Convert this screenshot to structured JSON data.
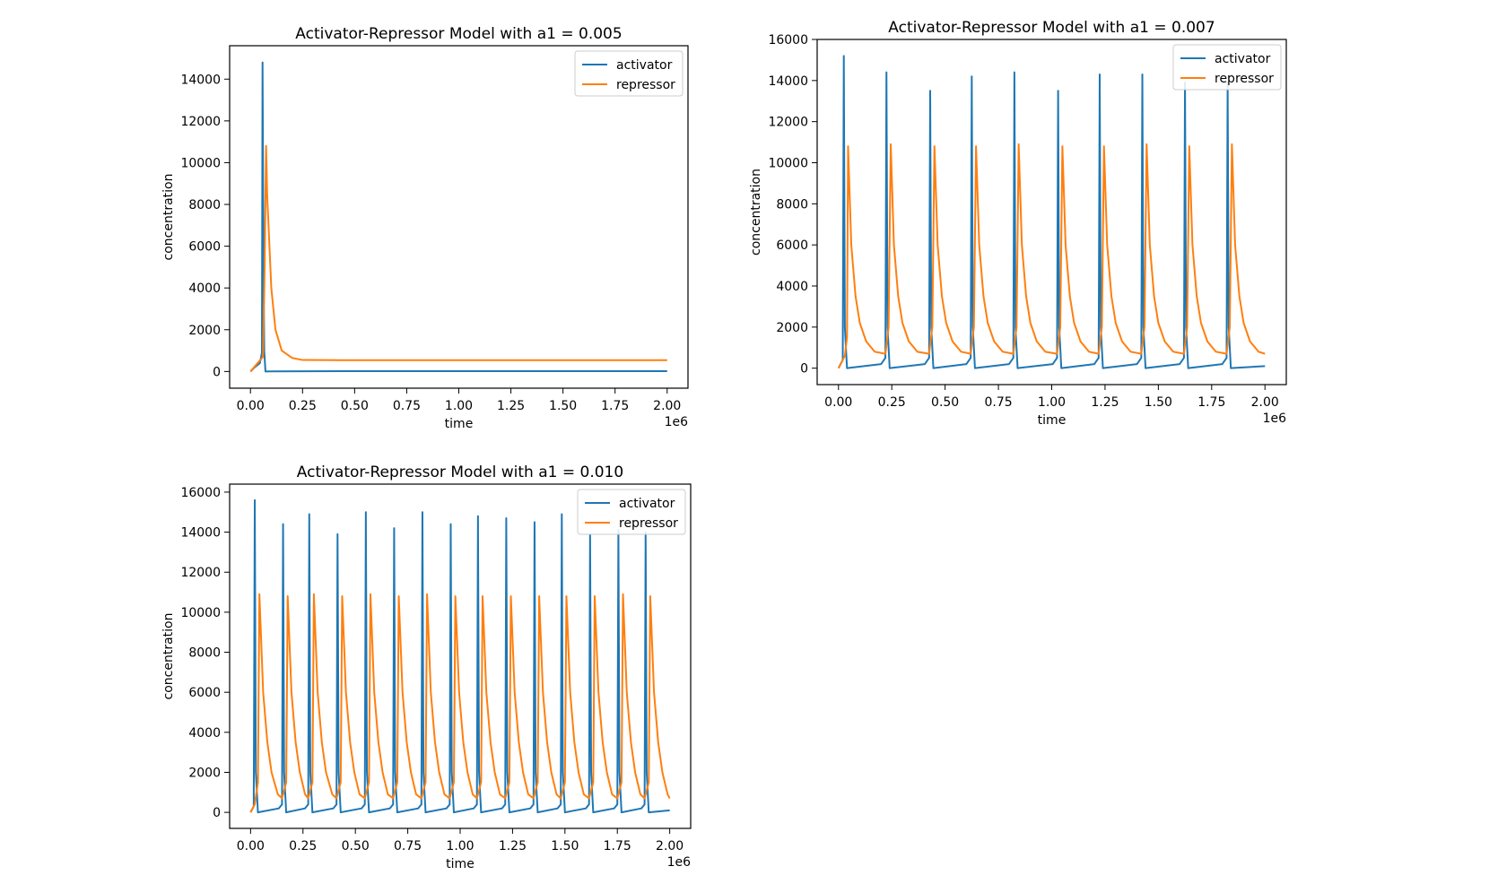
{
  "figure": {
    "colors": {
      "activator": "#1f77b4",
      "repressor": "#ff7f0e"
    }
  },
  "chart_data": [
    {
      "type": "line",
      "title": "Activator-Repressor Model with a1 = 0.005",
      "xlabel": "time",
      "ylabel": "concentration",
      "x_offset_label": "1e6",
      "xlim": [
        -0.1,
        2.1
      ],
      "ylim": [
        -800,
        15600
      ],
      "xticks": [
        0.0,
        0.25,
        0.5,
        0.75,
        1.0,
        1.25,
        1.5,
        1.75,
        2.0
      ],
      "xtick_labels": [
        "0.00",
        "0.25",
        "0.50",
        "0.75",
        "1.00",
        "1.25",
        "1.50",
        "1.75",
        "2.00"
      ],
      "yticks": [
        0,
        2000,
        4000,
        6000,
        8000,
        10000,
        12000,
        14000
      ],
      "ytick_labels": [
        "0",
        "2000",
        "4000",
        "6000",
        "8000",
        "10000",
        "12000",
        "14000"
      ],
      "grid": false,
      "legend": "top-right",
      "series": [
        {
          "name": "activator",
          "x": [
            0.0,
            0.02,
            0.045,
            0.055,
            0.058,
            0.062,
            0.066,
            0.072,
            0.1,
            0.25,
            0.5,
            1.0,
            1.5,
            2.0
          ],
          "y": [
            0,
            200,
            400,
            900,
            14800,
            6000,
            1000,
            0,
            5,
            12,
            15,
            15,
            15,
            15
          ]
        },
        {
          "name": "repressor",
          "x": [
            0.0,
            0.03,
            0.06,
            0.068,
            0.075,
            0.08,
            0.1,
            0.12,
            0.15,
            0.2,
            0.25,
            0.5,
            1.0,
            1.5,
            2.0
          ],
          "y": [
            0,
            350,
            700,
            5000,
            10800,
            8500,
            4000,
            2000,
            1000,
            650,
            550,
            540,
            540,
            540,
            540
          ]
        }
      ]
    },
    {
      "type": "line",
      "title": "Activator-Repressor Model with a1 = 0.007",
      "xlabel": "time",
      "ylabel": "concentration",
      "x_offset_label": "1e6",
      "xlim": [
        -0.1,
        2.1
      ],
      "ylim": [
        -800,
        16000
      ],
      "xticks": [
        0.0,
        0.25,
        0.5,
        0.75,
        1.0,
        1.25,
        1.5,
        1.75,
        2.0
      ],
      "xtick_labels": [
        "0.00",
        "0.25",
        "0.50",
        "0.75",
        "1.00",
        "1.25",
        "1.50",
        "1.75",
        "2.00"
      ],
      "yticks": [
        0,
        2000,
        4000,
        6000,
        8000,
        10000,
        12000,
        14000,
        16000
      ],
      "ytick_labels": [
        "0",
        "2000",
        "4000",
        "6000",
        "8000",
        "10000",
        "12000",
        "14000",
        "16000"
      ],
      "grid": false,
      "legend": "top-right",
      "series": [
        {
          "name": "activator",
          "x": [
            0.0,
            0.02,
            0.025,
            0.03,
            0.04,
            0.2,
            0.22,
            0.225,
            0.23,
            0.24,
            0.405,
            0.425,
            0.43,
            0.435,
            0.445,
            0.6,
            0.62,
            0.625,
            0.63,
            0.64,
            0.8,
            0.82,
            0.825,
            0.83,
            0.84,
            1.005,
            1.025,
            1.03,
            1.035,
            1.045,
            1.2,
            1.22,
            1.225,
            1.23,
            1.24,
            1.4,
            1.42,
            1.425,
            1.43,
            1.44,
            1.6,
            1.62,
            1.625,
            1.63,
            1.64,
            1.8,
            1.82,
            1.825,
            1.83,
            1.84,
            2.0
          ],
          "y": [
            0,
            400,
            15200,
            2000,
            0,
            200,
            500,
            14400,
            2000,
            0,
            200,
            500,
            13500,
            2000,
            0,
            200,
            500,
            14200,
            2000,
            0,
            200,
            500,
            14400,
            2000,
            0,
            200,
            500,
            13500,
            2000,
            0,
            200,
            500,
            14300,
            2000,
            0,
            200,
            500,
            14300,
            2000,
            0,
            200,
            500,
            13900,
            2000,
            0,
            200,
            500,
            13900,
            2000,
            0,
            100
          ]
        },
        {
          "name": "repressor",
          "x": [
            0.0,
            0.03,
            0.04,
            0.045,
            0.06,
            0.08,
            0.1,
            0.13,
            0.17,
            0.22,
            0.235,
            0.245,
            0.26,
            0.28,
            0.3,
            0.33,
            0.37,
            0.425,
            0.44,
            0.45,
            0.465,
            0.485,
            0.505,
            0.535,
            0.575,
            0.62,
            0.635,
            0.645,
            0.66,
            0.68,
            0.7,
            0.73,
            0.77,
            0.82,
            0.835,
            0.845,
            0.86,
            0.88,
            0.9,
            0.93,
            0.97,
            1.025,
            1.04,
            1.05,
            1.065,
            1.085,
            1.105,
            1.135,
            1.175,
            1.22,
            1.235,
            1.245,
            1.26,
            1.28,
            1.3,
            1.33,
            1.37,
            1.42,
            1.435,
            1.445,
            1.46,
            1.48,
            1.5,
            1.53,
            1.57,
            1.62,
            1.635,
            1.645,
            1.66,
            1.68,
            1.7,
            1.73,
            1.77,
            1.82,
            1.835,
            1.845,
            1.86,
            1.88,
            1.9,
            1.93,
            1.97,
            2.0
          ],
          "y": [
            0,
            600,
            1500,
            10800,
            6000,
            3500,
            2200,
            1300,
            800,
            700,
            2000,
            10900,
            6000,
            3500,
            2200,
            1300,
            800,
            700,
            2000,
            10800,
            6000,
            3500,
            2200,
            1300,
            800,
            700,
            2000,
            10800,
            6000,
            3500,
            2200,
            1300,
            800,
            700,
            2000,
            10900,
            6000,
            3500,
            2200,
            1300,
            800,
            700,
            2000,
            10800,
            6000,
            3500,
            2200,
            1300,
            800,
            700,
            2000,
            10800,
            6000,
            3500,
            2200,
            1300,
            800,
            700,
            2000,
            10900,
            6000,
            3500,
            2200,
            1300,
            800,
            700,
            2000,
            10800,
            6000,
            3500,
            2200,
            1300,
            800,
            700,
            2000,
            10900,
            6000,
            3500,
            2200,
            1300,
            800,
            700
          ]
        }
      ]
    },
    {
      "type": "line",
      "title": "Activator-Repressor Model with a1 = 0.010",
      "xlabel": "time",
      "ylabel": "concentration",
      "x_offset_label": "1e6",
      "xlim": [
        -0.1,
        2.1
      ],
      "ylim": [
        -800,
        16400
      ],
      "xticks": [
        0.0,
        0.25,
        0.5,
        0.75,
        1.0,
        1.25,
        1.5,
        1.75,
        2.0
      ],
      "xtick_labels": [
        "0.00",
        "0.25",
        "0.50",
        "0.75",
        "1.00",
        "1.25",
        "1.50",
        "1.75",
        "2.00"
      ],
      "yticks": [
        0,
        2000,
        4000,
        6000,
        8000,
        10000,
        12000,
        14000,
        16000
      ],
      "ytick_labels": [
        "0",
        "2000",
        "4000",
        "6000",
        "8000",
        "10000",
        "12000",
        "14000",
        "16000"
      ],
      "grid": false,
      "legend": "top-right",
      "series": [
        {
          "name": "activator",
          "x": [
            0.0,
            0.015,
            0.02,
            0.025,
            0.035,
            0.135,
            0.15,
            0.155,
            0.16,
            0.17,
            0.26,
            0.275,
            0.28,
            0.285,
            0.295,
            0.395,
            0.41,
            0.415,
            0.42,
            0.43,
            0.53,
            0.545,
            0.55,
            0.555,
            0.565,
            0.665,
            0.68,
            0.685,
            0.69,
            0.7,
            0.8,
            0.815,
            0.82,
            0.825,
            0.835,
            0.935,
            0.95,
            0.955,
            0.96,
            0.97,
            1.065,
            1.08,
            1.085,
            1.09,
            1.1,
            1.2,
            1.215,
            1.22,
            1.225,
            1.235,
            1.335,
            1.35,
            1.355,
            1.36,
            1.37,
            1.465,
            1.48,
            1.485,
            1.49,
            1.5,
            1.6,
            1.615,
            1.62,
            1.625,
            1.635,
            1.735,
            1.75,
            1.755,
            1.76,
            1.77,
            1.865,
            1.88,
            1.885,
            1.89,
            1.9,
            2.0
          ],
          "y": [
            0,
            300,
            15600,
            2000,
            0,
            200,
            400,
            14400,
            2000,
            0,
            200,
            400,
            14900,
            2000,
            0,
            200,
            400,
            13900,
            2000,
            0,
            200,
            400,
            15000,
            2000,
            0,
            200,
            400,
            14200,
            2000,
            0,
            200,
            400,
            15000,
            2000,
            0,
            200,
            400,
            14400,
            2000,
            0,
            200,
            400,
            14800,
            2000,
            0,
            200,
            400,
            14700,
            2000,
            0,
            200,
            400,
            14500,
            2000,
            0,
            200,
            400,
            14900,
            2000,
            0,
            200,
            400,
            13900,
            2000,
            0,
            200,
            400,
            14100,
            2000,
            0,
            200,
            400,
            14000,
            2000,
            0,
            100
          ]
        },
        {
          "name": "repressor",
          "x": [
            0.0,
            0.02,
            0.035,
            0.042,
            0.06,
            0.08,
            0.1,
            0.13,
            0.15,
            0.17,
            0.177,
            0.195,
            0.215,
            0.235,
            0.26,
            0.275,
            0.295,
            0.302,
            0.32,
            0.34,
            0.36,
            0.39,
            0.41,
            0.43,
            0.437,
            0.455,
            0.475,
            0.495,
            0.52,
            0.545,
            0.565,
            0.572,
            0.59,
            0.61,
            0.63,
            0.655,
            0.68,
            0.7,
            0.707,
            0.725,
            0.745,
            0.765,
            0.79,
            0.815,
            0.835,
            0.842,
            0.86,
            0.88,
            0.9,
            0.925,
            0.95,
            0.97,
            0.977,
            0.995,
            1.015,
            1.035,
            1.06,
            1.08,
            1.1,
            1.107,
            1.125,
            1.145,
            1.165,
            1.19,
            1.215,
            1.235,
            1.242,
            1.26,
            1.28,
            1.3,
            1.325,
            1.35,
            1.37,
            1.377,
            1.395,
            1.415,
            1.435,
            1.46,
            1.48,
            1.5,
            1.507,
            1.525,
            1.545,
            1.565,
            1.59,
            1.615,
            1.635,
            1.642,
            1.66,
            1.68,
            1.7,
            1.725,
            1.75,
            1.77,
            1.777,
            1.795,
            1.815,
            1.835,
            1.86,
            1.88,
            1.9,
            1.907,
            1.925,
            1.945,
            1.965,
            1.99,
            2.0
          ],
          "y": [
            0,
            400,
            1500,
            10900,
            6000,
            3500,
            2000,
            900,
            700,
            1500,
            10800,
            6000,
            3500,
            2000,
            900,
            700,
            1500,
            10900,
            6000,
            3500,
            2000,
            900,
            700,
            1500,
            10800,
            6000,
            3500,
            2000,
            900,
            700,
            1500,
            10900,
            6000,
            3500,
            2000,
            900,
            700,
            1500,
            10800,
            6000,
            3500,
            2000,
            900,
            700,
            1500,
            10900,
            6000,
            3500,
            2000,
            900,
            700,
            1500,
            10800,
            6000,
            3500,
            2000,
            900,
            700,
            1500,
            10800,
            6000,
            3500,
            2000,
            900,
            700,
            1500,
            10800,
            6000,
            3500,
            2000,
            900,
            700,
            1500,
            10800,
            6000,
            3500,
            2000,
            900,
            700,
            1500,
            10800,
            6000,
            3500,
            2000,
            900,
            700,
            1500,
            10800,
            6000,
            3500,
            2000,
            900,
            700,
            1500,
            10900,
            6000,
            3500,
            2000,
            900,
            700,
            1500,
            10800,
            6000,
            3500,
            2000,
            900,
            700
          ]
        }
      ]
    }
  ]
}
